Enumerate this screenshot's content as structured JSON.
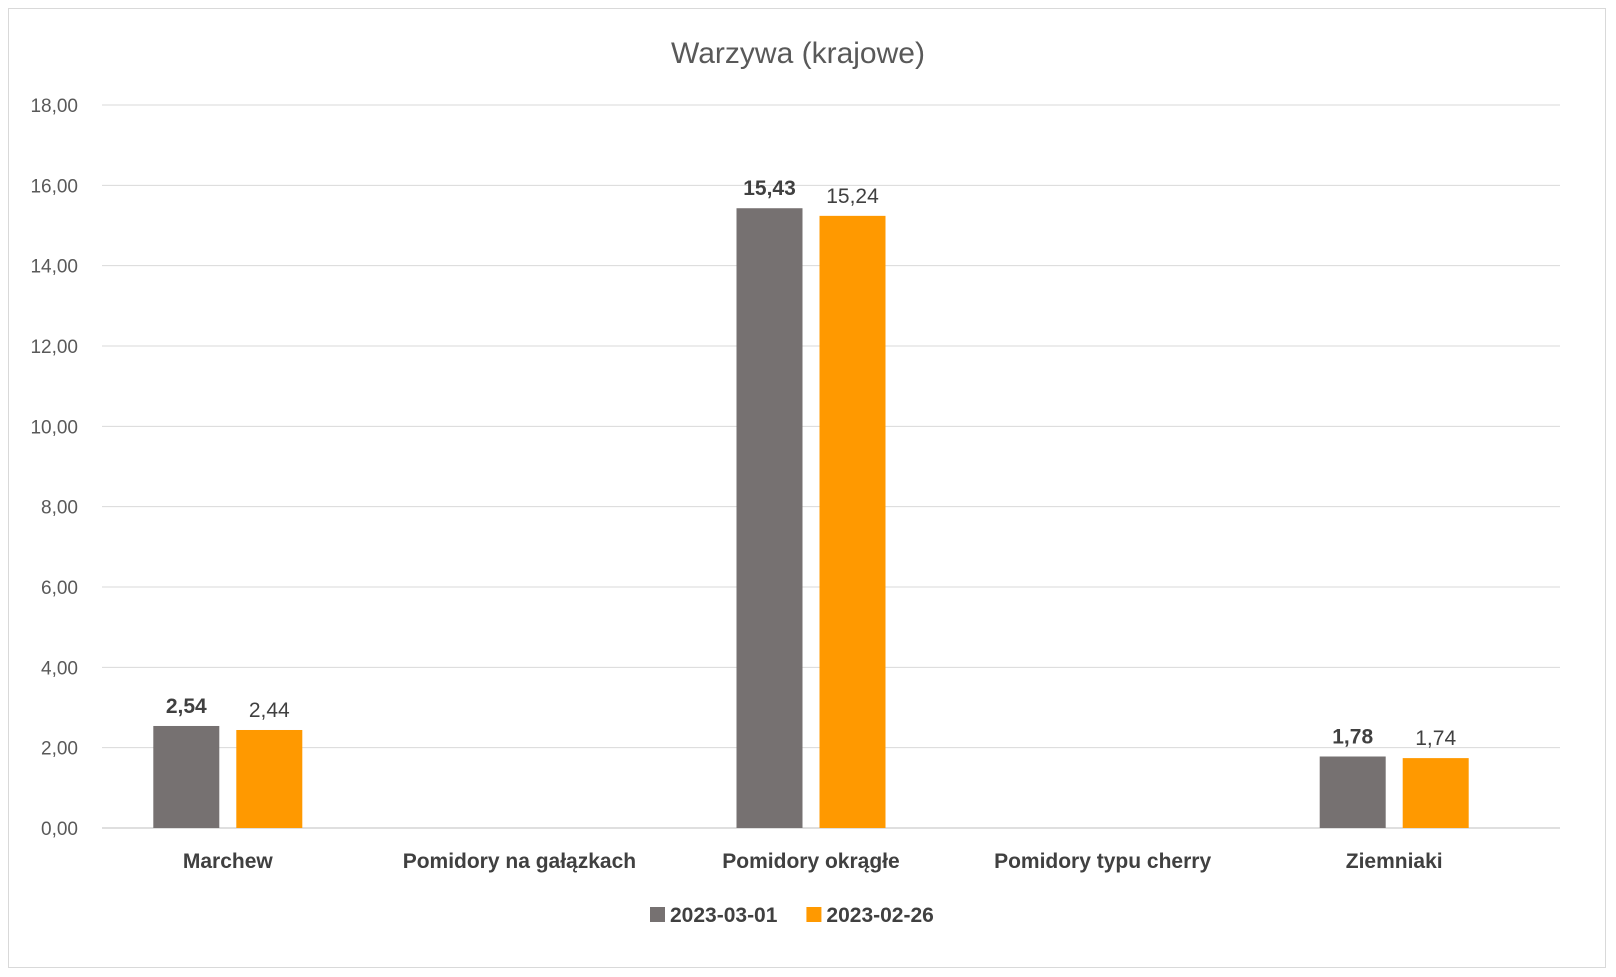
{
  "chart_data": {
    "type": "bar",
    "title": "Warzywa (krajowe)",
    "categories": [
      "Marchew",
      "Pomidory na gałązkach",
      "Pomidory okrągłe",
      "Pomidory typu cherry",
      "Ziemniaki"
    ],
    "series": [
      {
        "name": "2023-03-01",
        "color": "#767171",
        "values": [
          2.54,
          null,
          15.43,
          null,
          1.78
        ],
        "labels": [
          "2,54",
          "",
          "15,43",
          "",
          "1,78"
        ],
        "label_style": "bold"
      },
      {
        "name": "2023-02-26",
        "color": "#ff9900",
        "values": [
          2.44,
          null,
          15.24,
          null,
          1.74
        ],
        "labels": [
          "2,44",
          "",
          "15,24",
          "",
          "1,74"
        ],
        "label_style": "normal"
      }
    ],
    "ylim": [
      0,
      18
    ],
    "yticks": [
      "0,00",
      "2,00",
      "4,00",
      "6,00",
      "8,00",
      "10,00",
      "12,00",
      "14,00",
      "16,00",
      "18,00"
    ],
    "grid": true,
    "legend_position": "bottom"
  }
}
